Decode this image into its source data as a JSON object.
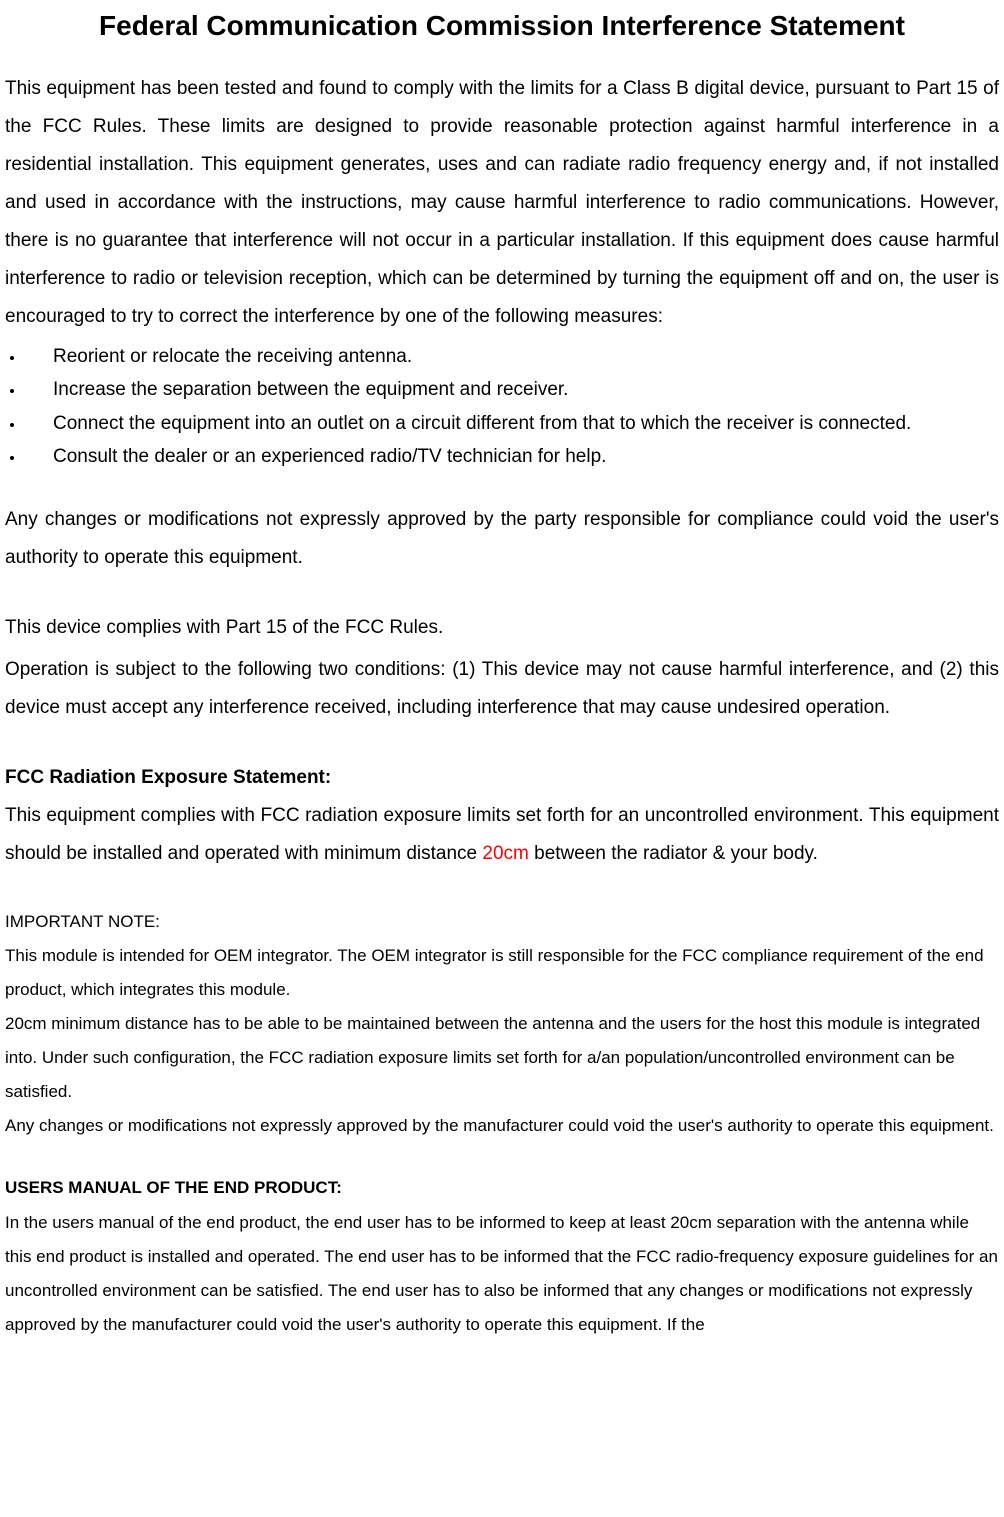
{
  "document": {
    "title": "Federal Communication Commission Interference Statement",
    "para1": "This equipment has been tested and found to comply with the limits for a Class B digital device, pursuant to Part 15 of the FCC Rules.  These limits are designed to provide reasonable protection against harmful interference in a residential installation.  This equipment generates, uses and can radiate radio frequency energy and, if not installed and used in accordance with the instructions, may cause harmful interference to radio communications.  However, there is no guarantee that interference will not occur in a particular installation.  If this equipment does cause harmful interference to radio or television reception, which can be determined by turning the equipment off and on, the user is encouraged to try to correct the interference by one of the following measures:",
    "bullets": [
      "Reorient or relocate the receiving antenna.",
      "Increase the separation between the equipment and receiver.",
      "Connect the equipment into an outlet on a circuit different from that to which the receiver is connected.",
      "Consult the dealer or an experienced radio/TV technician for help."
    ],
    "para2": "Any changes or modifications not expressly approved by the party responsible for compliance could void the user's authority to operate this equipment.",
    "para3": "This device complies with Part 15 of the FCC Rules.",
    "para4": "Operation is subject to the following two conditions: (1) This device may not cause harmful interference, and (2) this device must accept any interference received, including interference that may cause undesired operation.",
    "radiation_heading": "FCC Radiation Exposure Statement:",
    "radiation_para_pre": "This equipment complies with FCC radiation exposure limits set forth for an uncontrolled environment. This equipment should be installed and operated with minimum distance ",
    "radiation_distance": "20cm",
    "radiation_para_post": " between the radiator & your body.",
    "important_heading": "IMPORTANT NOTE:",
    "important_para1": "This module is intended for OEM integrator. The OEM integrator is still responsible for the FCC compliance requirement of the end product, which integrates this module.",
    "important_para2": "20cm minimum distance has to be able to be maintained between the antenna and the users for the host this module is integrated into. Under such configuration, the FCC radiation exposure limits set forth for a/an population/uncontrolled environment can be satisfied.",
    "important_para3": "Any changes or modifications not expressly approved by the manufacturer could void the user's authority to operate this equipment.",
    "users_manual_heading": "USERS MANUAL OF THE END PRODUCT:",
    "users_manual_para": "In the users manual of the end product, the end user has to be informed to keep at least 20cm separation with the antenna while this end product is installed and operated. The end user has to be informed that the FCC radio-frequency exposure guidelines for an uncontrolled environment can be satisfied. The end user has to also be informed that any changes or modifications not expressly approved by the manufacturer could void the user's authority to operate this equipment. If the"
  },
  "styles": {
    "title_fontsize": 28,
    "body_fontsize": 19,
    "small_fontsize": 17,
    "text_color": "#000000",
    "accent_color": "#ff0000",
    "background_color": "#ffffff",
    "line_height": 2.0
  }
}
